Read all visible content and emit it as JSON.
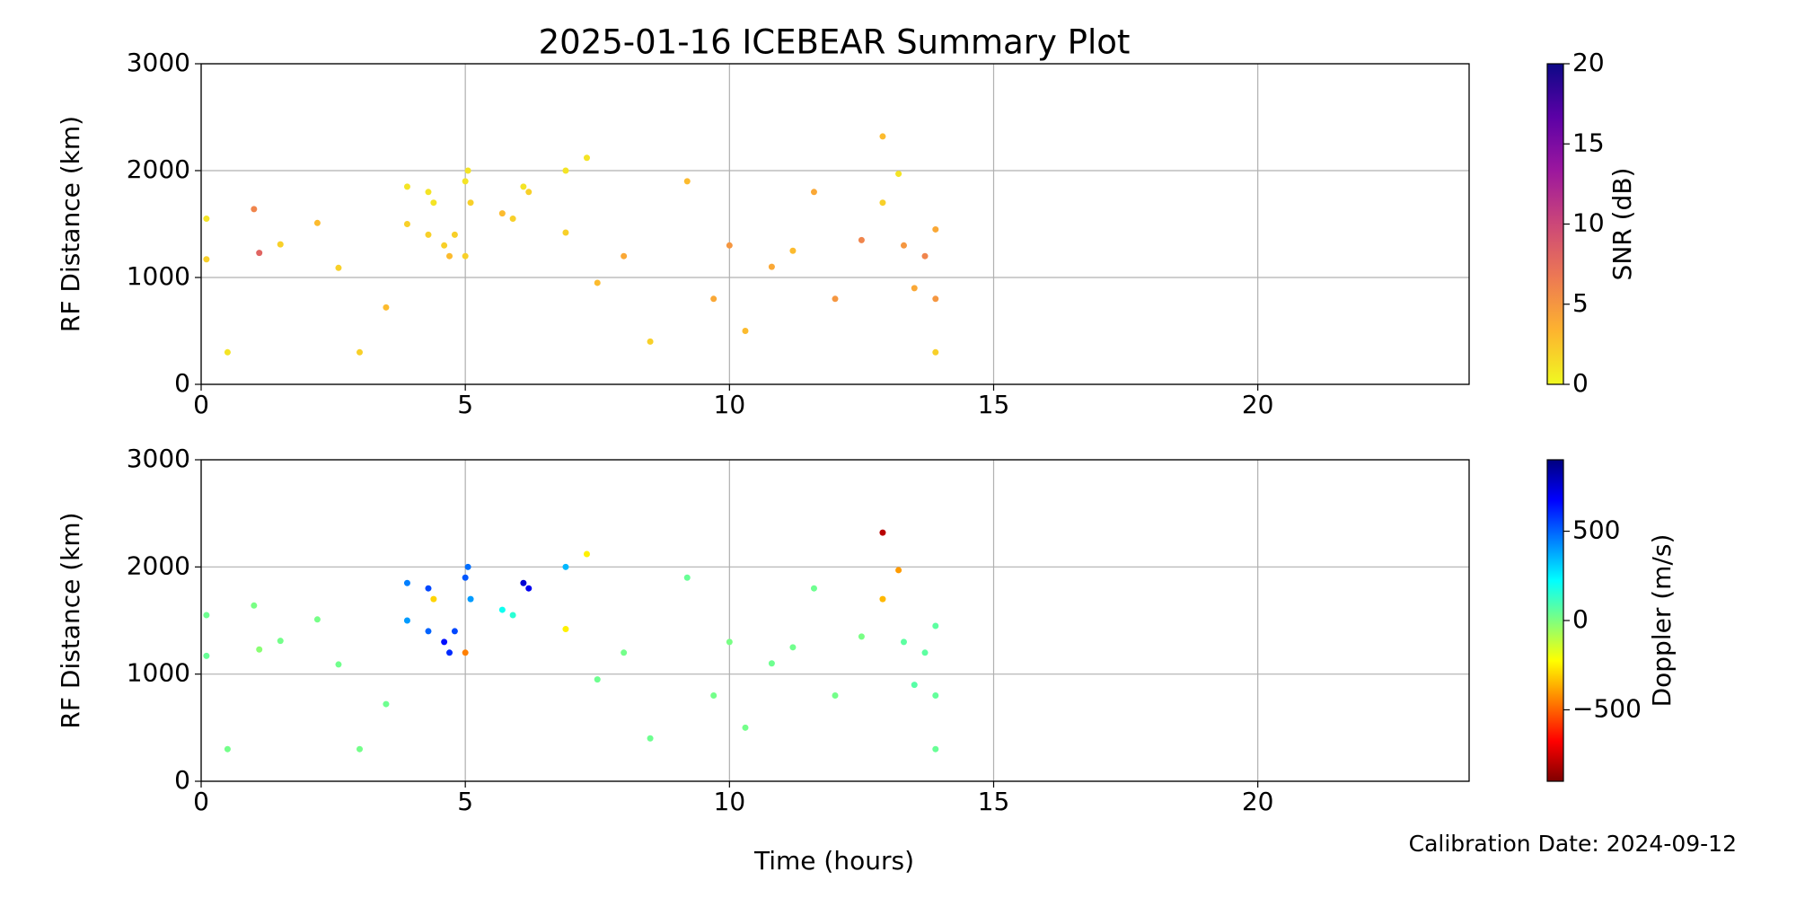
{
  "title": "2025-01-16 ICEBEAR Summary Plot",
  "xlabel": "Time (hours)",
  "annotation": "Calibration Date: 2024-09-12",
  "chart_data": [
    {
      "type": "scatter",
      "ylabel": "RF Distance (km)",
      "xlim": [
        0,
        24
      ],
      "xticks": [
        0,
        5,
        10,
        15,
        20
      ],
      "ylim": [
        0,
        3000
      ],
      "yticks": [
        0,
        1000,
        2000,
        3000
      ],
      "grid": true,
      "x": [
        0.1,
        0.1,
        0.5,
        1.0,
        1.1,
        1.5,
        2.2,
        2.6,
        3.0,
        3.5,
        3.9,
        3.9,
        4.3,
        4.3,
        4.4,
        4.6,
        4.7,
        4.8,
        5.0,
        5.05,
        5.0,
        5.1,
        5.7,
        5.9,
        6.1,
        6.2,
        6.9,
        6.9,
        7.3,
        7.5,
        8.0,
        8.5,
        9.2,
        9.7,
        10.0,
        10.3,
        10.8,
        11.2,
        11.6,
        12.0,
        12.5,
        12.9,
        12.9,
        13.2,
        13.3,
        13.5,
        13.7,
        13.9,
        13.9,
        13.9
      ],
      "y": [
        1550,
        1170,
        300,
        1640,
        1230,
        1310,
        1510,
        1090,
        300,
        720,
        1850,
        1500,
        1800,
        1400,
        1700,
        1300,
        1200,
        1400,
        1900,
        2000,
        1200,
        1700,
        1600,
        1550,
        1850,
        1800,
        2000,
        1420,
        2120,
        950,
        1200,
        400,
        1900,
        800,
        1300,
        500,
        1100,
        1250,
        1800,
        800,
        1350,
        2320,
        1700,
        1970,
        1300,
        900,
        1200,
        800,
        1450,
        300
      ],
      "z": [
        1,
        2,
        1,
        6,
        8,
        2,
        3,
        2,
        2,
        3,
        1,
        2,
        1,
        2,
        1,
        2,
        3,
        2,
        1,
        1,
        2,
        2,
        3,
        2,
        1,
        2,
        1,
        2,
        1,
        3,
        4,
        2,
        3,
        4,
        5,
        3,
        4,
        3,
        4,
        5,
        6,
        3,
        2,
        1,
        5,
        4,
        6,
        5,
        4,
        2
      ],
      "colorbar": {
        "label": "SNR (dB)",
        "lim": [
          0,
          20
        ],
        "ticks": [
          0,
          5,
          10,
          15,
          20
        ],
        "colormap": [
          "#f0f921",
          "#fdb42f",
          "#ed7953",
          "#cc4778",
          "#9c179e",
          "#5c01a6",
          "#0d0887"
        ]
      }
    },
    {
      "type": "scatter",
      "ylabel": "RF Distance (km)",
      "xlim": [
        0,
        24
      ],
      "xticks": [
        0,
        5,
        10,
        15,
        20
      ],
      "ylim": [
        0,
        3000
      ],
      "yticks": [
        0,
        1000,
        2000,
        3000
      ],
      "grid": true,
      "x": [
        0.1,
        0.1,
        0.5,
        1.0,
        1.1,
        1.5,
        2.2,
        2.6,
        3.0,
        3.5,
        3.9,
        3.9,
        4.3,
        4.3,
        4.4,
        4.6,
        4.7,
        4.8,
        5.0,
        5.05,
        5.0,
        5.1,
        5.7,
        5.9,
        6.1,
        6.2,
        6.9,
        6.9,
        7.3,
        7.5,
        8.0,
        8.5,
        9.2,
        9.7,
        10.0,
        10.3,
        10.8,
        11.2,
        11.6,
        12.0,
        12.5,
        12.9,
        12.9,
        13.2,
        13.3,
        13.5,
        13.7,
        13.9,
        13.9,
        13.9
      ],
      "y": [
        1550,
        1170,
        300,
        1640,
        1230,
        1310,
        1510,
        1090,
        300,
        720,
        1850,
        1500,
        1800,
        1400,
        1700,
        1300,
        1200,
        1400,
        1900,
        2000,
        1200,
        1700,
        1600,
        1550,
        1850,
        1800,
        2000,
        1420,
        2120,
        950,
        1200,
        400,
        1900,
        800,
        1300,
        500,
        1100,
        1250,
        1800,
        800,
        1350,
        2320,
        1700,
        1970,
        1300,
        900,
        1200,
        800,
        1450,
        300
      ],
      "z": [
        30,
        40,
        20,
        10,
        -20,
        20,
        15,
        25,
        20,
        30,
        450,
        400,
        550,
        500,
        -300,
        650,
        600,
        550,
        520,
        480,
        -450,
        400,
        200,
        150,
        750,
        700,
        350,
        -250,
        -250,
        30,
        20,
        30,
        40,
        20,
        10,
        20,
        30,
        25,
        30,
        20,
        10,
        -800,
        -350,
        -400,
        60,
        70,
        60,
        50,
        60,
        40
      ],
      "colorbar": {
        "label": "Doppler (m/s)",
        "lim": [
          -900,
          900
        ],
        "ticks": [
          {
            "value": -500,
            "label": "−500"
          },
          0,
          500
        ],
        "colormap": [
          "#7f0000",
          "#ff0000",
          "#ff7f00",
          "#ffff00",
          "#7fff7f",
          "#00ffff",
          "#007fff",
          "#0000ff",
          "#00007f"
        ]
      }
    }
  ]
}
